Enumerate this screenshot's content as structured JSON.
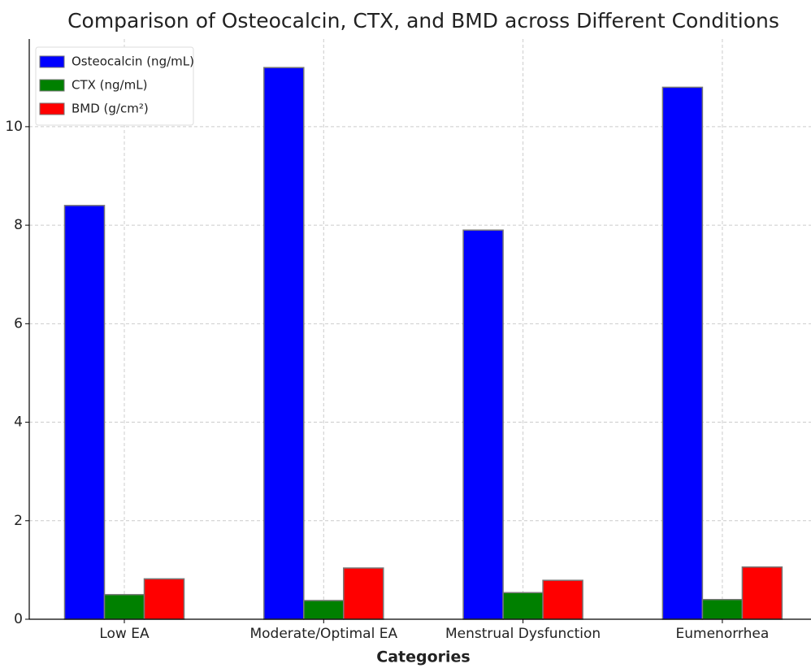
{
  "chart_data": {
    "type": "bar",
    "title": "Comparison of Osteocalcin, CTX, and BMD across Different Conditions",
    "xlabel": "Categories",
    "categories": [
      "Low EA",
      "Moderate/Optimal EA",
      "Menstrual Dysfunction",
      "Eumenorrhea"
    ],
    "series": [
      {
        "name": "Osteocalcin (ng/mL)",
        "color": "#0000ff",
        "values": [
          8.4,
          11.2,
          7.9,
          10.8
        ]
      },
      {
        "name": "CTX (ng/mL)",
        "color": "#008000",
        "values": [
          0.5,
          0.38,
          0.54,
          0.4
        ]
      },
      {
        "name": "BMD (g/cm²)",
        "color": "#ff0000",
        "values": [
          0.82,
          1.04,
          0.79,
          1.06
        ]
      }
    ],
    "ylim": [
      0,
      11.78
    ],
    "yticks": [
      0,
      2,
      4,
      6,
      8,
      10
    ],
    "grid": true,
    "legend": "upper-left"
  }
}
